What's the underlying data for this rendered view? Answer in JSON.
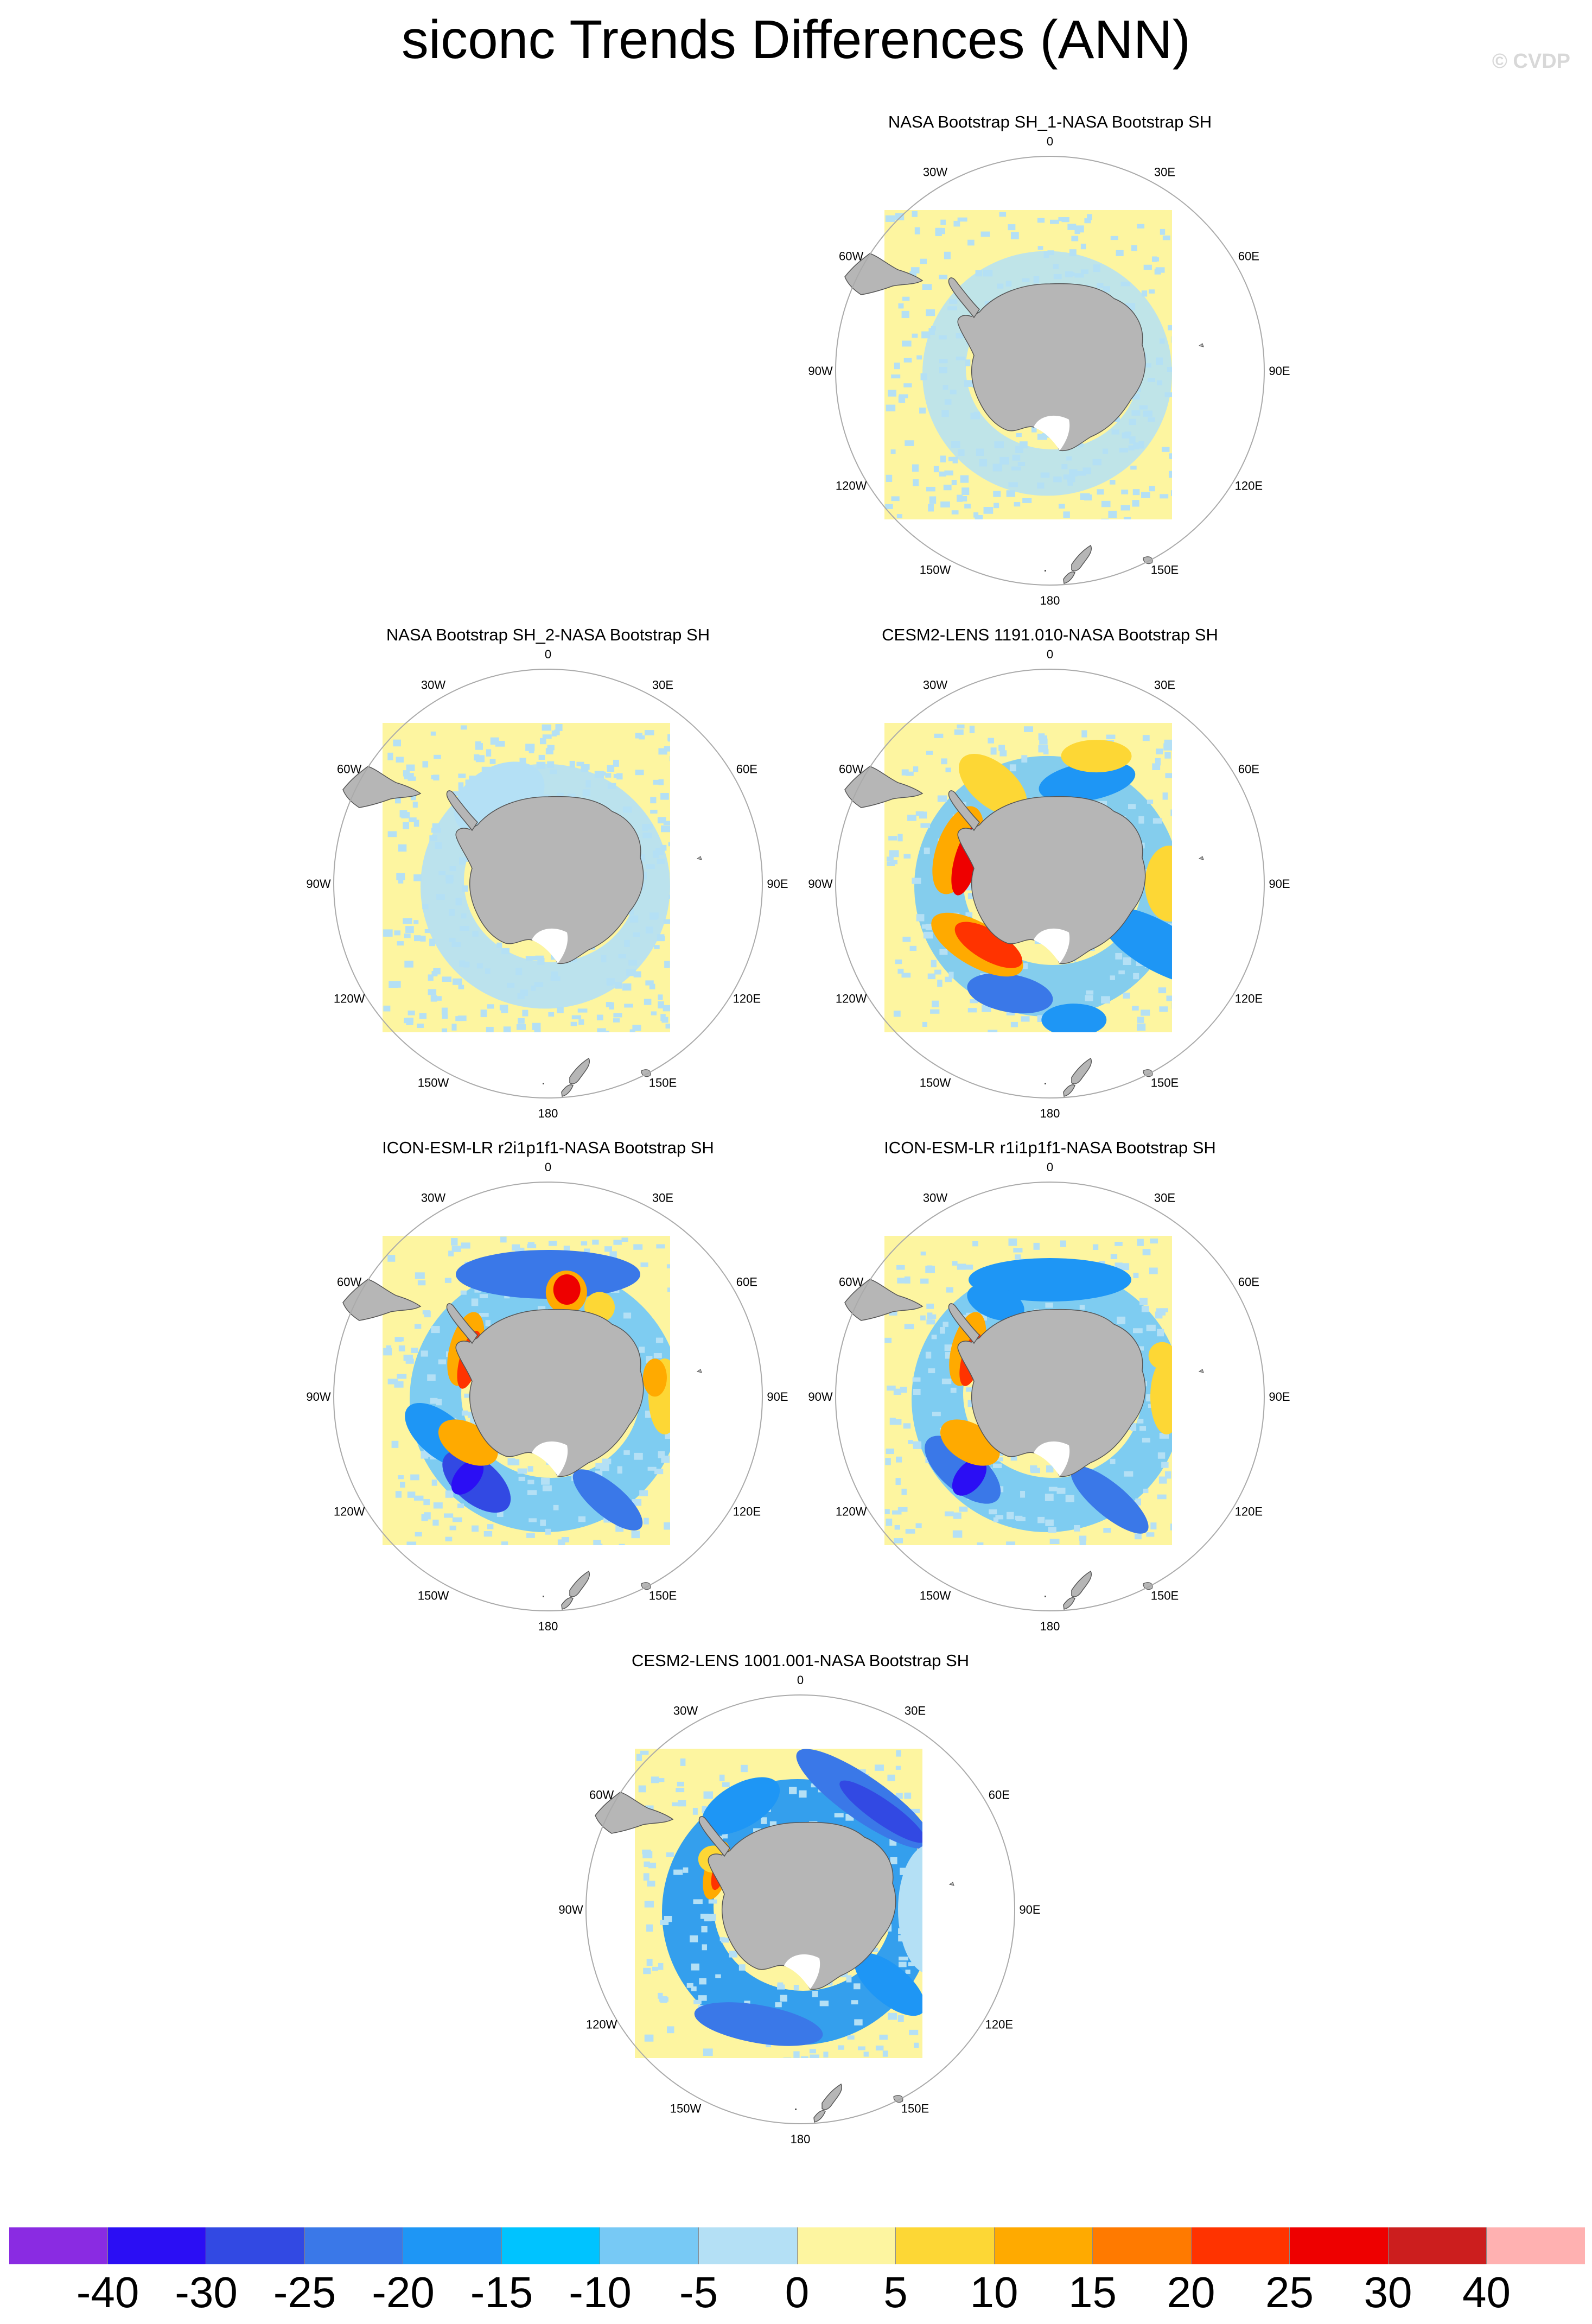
{
  "title": "siconc Trends Differences (ANN)",
  "watermark": "© CVDP",
  "lon_labels": [
    "0",
    "30E",
    "60E",
    "90E",
    "120E",
    "150E",
    "180",
    "150W",
    "120W",
    "90W",
    "60W",
    "30W"
  ],
  "panels": [
    {
      "title": "NASA Bootstrap SH_1-NASA Bootstrap SH",
      "pattern": "obs_1",
      "col": 1,
      "row": 0
    },
    {
      "title": "NASA Bootstrap SH_2-NASA Bootstrap SH",
      "pattern": "obs_2",
      "col": 0,
      "row": 1
    },
    {
      "title": "CESM2-LENS 1191.010-NASA Bootstrap SH",
      "pattern": "cesm_1191",
      "col": 1,
      "row": 1
    },
    {
      "title": "ICON-ESM-LR r2i1p1f1-NASA Bootstrap SH",
      "pattern": "icon_r2",
      "col": 0,
      "row": 2
    },
    {
      "title": "ICON-ESM-LR r1i1p1f1-NASA Bootstrap SH",
      "pattern": "icon_r1",
      "col": 1,
      "row": 2
    },
    {
      "title": "CESM2-LENS 1001.001-NASA Bootstrap SH",
      "pattern": "cesm_1001",
      "col": 0.5,
      "row": 3
    }
  ],
  "colorbar": {
    "colors": [
      "#8a2be2",
      "#2b0ef4",
      "#3249e3",
      "#3a78e8",
      "#1e96f5",
      "#00c3ff",
      "#77c9f5",
      "#b4e0f5",
      "#fdf5a0",
      "#fdd735",
      "#ffaa00",
      "#ff7a00",
      "#ff3300",
      "#ee0000",
      "#cc1e1e",
      "#ffb1b1"
    ],
    "labels": [
      "-40",
      "-30",
      "-25",
      "-20",
      "-15",
      "-10",
      "-5",
      "0",
      "5",
      "10",
      "15",
      "20",
      "25",
      "30",
      "40"
    ]
  }
}
